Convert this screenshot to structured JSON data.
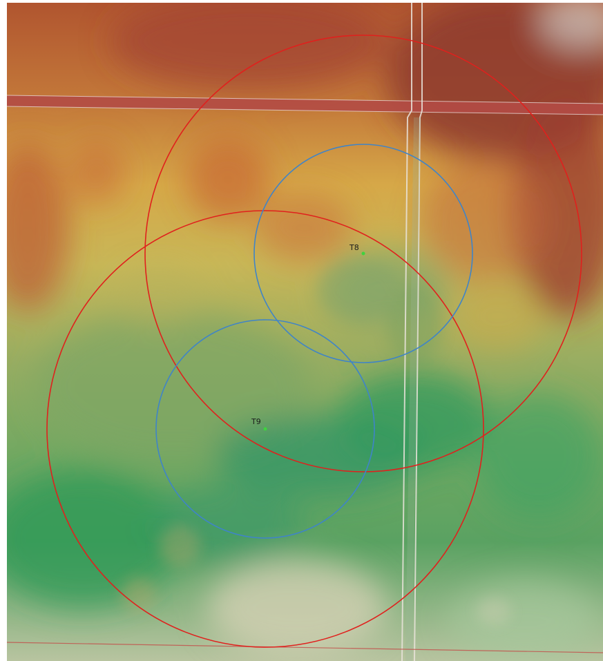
{
  "map": {
    "type": "elevation-shaded-relief",
    "palette": [
      "#2f9a57",
      "#6fae5a",
      "#a9b45a",
      "#d8bc4d",
      "#d88f3c",
      "#b95a36",
      "#8a3a2e",
      "#cfc8a8"
    ],
    "colors": {
      "outer_radius_ring": "#e0201d",
      "inner_radius_ring": "#3f84c8",
      "turbine_point": "#3fd23f",
      "road": "#c2524c"
    },
    "turbines": [
      {
        "id": "T8",
        "label": "T8"
      },
      {
        "id": "T9",
        "label": "T9"
      }
    ]
  }
}
